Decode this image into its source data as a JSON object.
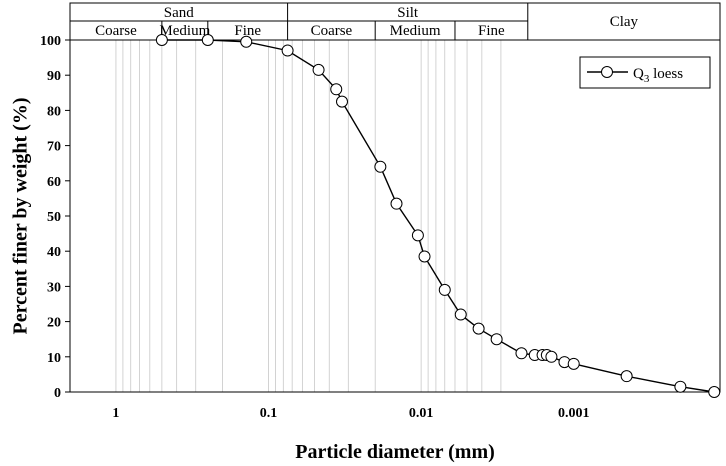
{
  "chart_data": {
    "type": "line",
    "xlabel": "Particle diameter (mm)",
    "ylabel": "Percent finer by weight (%)",
    "x_scale": "log-reversed",
    "xlim": [
      2,
      0.00011
    ],
    "ylim": [
      0,
      100
    ],
    "x_ticks": [
      {
        "value": 1,
        "label": "1"
      },
      {
        "value": 0.1,
        "label": "0.1"
      },
      {
        "value": 0.01,
        "label": "0.01"
      },
      {
        "value": 0.001,
        "label": "0.001"
      }
    ],
    "y_ticks": [
      0,
      10,
      20,
      30,
      40,
      50,
      60,
      70,
      80,
      90,
      100
    ],
    "y_tick_labels": [
      "0",
      "10",
      "20",
      "30",
      "40",
      "50",
      "60",
      "70",
      "80",
      "90",
      "100"
    ],
    "legend": {
      "position": "top-right",
      "base": "Q",
      "subscript": "3",
      "suffix": " loess"
    },
    "series": [
      {
        "marker": "open-circle",
        "x": [
          0.5,
          0.25,
          0.14,
          0.075,
          0.047,
          0.036,
          0.033,
          0.0185,
          0.0145,
          0.0105,
          0.0095,
          0.007,
          0.0055,
          0.0042,
          0.0032,
          0.0022,
          0.0018,
          0.0016,
          0.0015,
          0.0014,
          0.00115,
          0.001,
          0.00045,
          0.0002,
          0.00012
        ],
        "y": [
          100,
          100,
          99.5,
          97,
          91.5,
          86,
          82.5,
          64,
          53.5,
          44.5,
          38.5,
          29,
          22,
          18,
          15,
          11,
          10.5,
          10.5,
          10.5,
          10,
          8.5,
          8,
          4.5,
          1.5,
          0
        ]
      }
    ],
    "soil_bands": {
      "sand": {
        "label": "Sand",
        "range": [
          2,
          0.075
        ],
        "subs": [
          {
            "label": "Coarse",
            "range": [
              2,
              0.5
            ]
          },
          {
            "label": "Medium",
            "range": [
              0.5,
              0.25
            ]
          },
          {
            "label": "Fine",
            "range": [
              0.25,
              0.075
            ]
          }
        ]
      },
      "silt": {
        "label": "Silt",
        "range": [
          0.075,
          0.002
        ],
        "subs": [
          {
            "label": "Coarse",
            "range": [
              0.075,
              0.02
            ]
          },
          {
            "label": "Medium",
            "range": [
              0.02,
              0.006
            ]
          },
          {
            "label": "Fine",
            "range": [
              0.006,
              0.002
            ]
          }
        ]
      },
      "clay": {
        "label": "Clay",
        "range": [
          0.002,
          0.00011
        ]
      }
    }
  }
}
